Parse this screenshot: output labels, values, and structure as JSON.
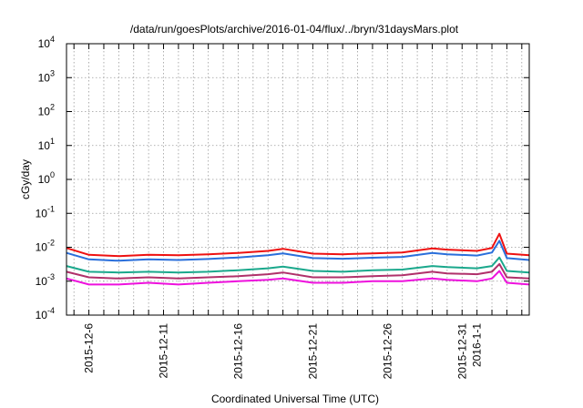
{
  "chart_data": {
    "type": "line",
    "title": "/data/run/goesPlots/archive/2016-01-04/flux/../bryn/31daysMars.plot",
    "xlabel": "Coordinated Universal Time (UTC)",
    "ylabel": "cGy/day",
    "y_scale": "log",
    "ylim": [
      0.0001,
      10000
    ],
    "xlim": [
      "2015-12-04T12:00",
      "2016-01-04T12:00"
    ],
    "grid": true,
    "y_ticks": [
      {
        "base": "10",
        "exp": "4"
      },
      {
        "base": "10",
        "exp": "3"
      },
      {
        "base": "10",
        "exp": "2"
      },
      {
        "base": "10",
        "exp": "1"
      },
      {
        "base": "10",
        "exp": "0"
      },
      {
        "base": "10",
        "exp": "-1"
      },
      {
        "base": "10",
        "exp": "-2"
      },
      {
        "base": "10",
        "exp": "-3"
      },
      {
        "base": "10",
        "exp": "-4"
      }
    ],
    "x_ticks": [
      "2015-12-6",
      "2015-12-11",
      "2015-12-16",
      "2015-12-21",
      "2015-12-26",
      "2015-12-31",
      "2016-1-1"
    ],
    "series": [
      {
        "color": "#ee1111",
        "x": [
          "2015-12-04T12:00",
          "2015-12-06",
          "2015-12-08",
          "2015-12-10",
          "2015-12-12",
          "2015-12-14",
          "2015-12-16",
          "2015-12-18",
          "2015-12-19",
          "2015-12-21",
          "2015-12-23",
          "2015-12-25",
          "2015-12-27",
          "2015-12-29",
          "2015-12-30",
          "2016-01-01",
          "2016-01-02",
          "2016-01-02T12:00",
          "2016-01-03",
          "2016-01-04T12:00"
        ],
        "values": [
          0.0095,
          0.006,
          0.0055,
          0.006,
          0.0058,
          0.0062,
          0.0068,
          0.0078,
          0.009,
          0.0065,
          0.0062,
          0.0066,
          0.007,
          0.0092,
          0.0085,
          0.0078,
          0.0095,
          0.025,
          0.0065,
          0.0058
        ]
      },
      {
        "color": "#2a6fdb",
        "x": [
          "2015-12-04T12:00",
          "2015-12-06",
          "2015-12-08",
          "2015-12-10",
          "2015-12-12",
          "2015-12-14",
          "2015-12-16",
          "2015-12-18",
          "2015-12-19",
          "2015-12-21",
          "2015-12-23",
          "2015-12-25",
          "2015-12-27",
          "2015-12-29",
          "2015-12-30",
          "2016-01-01",
          "2016-01-02",
          "2016-01-02T12:00",
          "2016-01-03",
          "2016-01-04T12:00"
        ],
        "values": [
          0.0068,
          0.0044,
          0.004,
          0.0044,
          0.0042,
          0.0045,
          0.005,
          0.0058,
          0.0066,
          0.0048,
          0.0046,
          0.0049,
          0.0052,
          0.0068,
          0.0062,
          0.0057,
          0.007,
          0.0155,
          0.0048,
          0.0042
        ]
      },
      {
        "color": "#1aa88c",
        "x": [
          "2015-12-04T12:00",
          "2015-12-06",
          "2015-12-08",
          "2015-12-10",
          "2015-12-12",
          "2015-12-14",
          "2015-12-16",
          "2015-12-18",
          "2015-12-19",
          "2015-12-21",
          "2015-12-23",
          "2015-12-25",
          "2015-12-27",
          "2015-12-29",
          "2015-12-30",
          "2016-01-01",
          "2016-01-02",
          "2016-01-02T12:00",
          "2016-01-03",
          "2016-01-04T12:00"
        ],
        "values": [
          0.0028,
          0.0019,
          0.0018,
          0.0019,
          0.0018,
          0.0019,
          0.0021,
          0.0024,
          0.0027,
          0.002,
          0.0019,
          0.0021,
          0.0022,
          0.0028,
          0.0026,
          0.0024,
          0.0028,
          0.005,
          0.002,
          0.0018
        ]
      },
      {
        "color": "#b0306a",
        "x": [
          "2015-12-04T12:00",
          "2015-12-06",
          "2015-12-08",
          "2015-12-10",
          "2015-12-12",
          "2015-12-14",
          "2015-12-16",
          "2015-12-18",
          "2015-12-19",
          "2015-12-21",
          "2015-12-23",
          "2015-12-25",
          "2015-12-27",
          "2015-12-29",
          "2015-12-30",
          "2016-01-01",
          "2016-01-02",
          "2016-01-02T12:00",
          "2016-01-03",
          "2016-01-04T12:00"
        ],
        "values": [
          0.0019,
          0.0013,
          0.0012,
          0.0013,
          0.0012,
          0.0013,
          0.0014,
          0.0016,
          0.0018,
          0.0013,
          0.0013,
          0.0014,
          0.0015,
          0.0019,
          0.0017,
          0.0016,
          0.0019,
          0.0032,
          0.0013,
          0.0012
        ]
      },
      {
        "color": "#ee11dd",
        "x": [
          "2015-12-04T12:00",
          "2015-12-06",
          "2015-12-08",
          "2015-12-10",
          "2015-12-12",
          "2015-12-14",
          "2015-12-16",
          "2015-12-18",
          "2015-12-19",
          "2015-12-21",
          "2015-12-23",
          "2015-12-25",
          "2015-12-27",
          "2015-12-29",
          "2015-12-30",
          "2016-01-01",
          "2016-01-02",
          "2016-01-02T12:00",
          "2016-01-03",
          "2016-01-04T12:00"
        ],
        "values": [
          0.0012,
          0.0008,
          0.0008,
          0.0009,
          0.0008,
          0.0009,
          0.001,
          0.0011,
          0.0012,
          0.0009,
          0.0009,
          0.001,
          0.001,
          0.0012,
          0.0011,
          0.001,
          0.0012,
          0.002,
          0.0009,
          0.0008
        ]
      }
    ]
  }
}
